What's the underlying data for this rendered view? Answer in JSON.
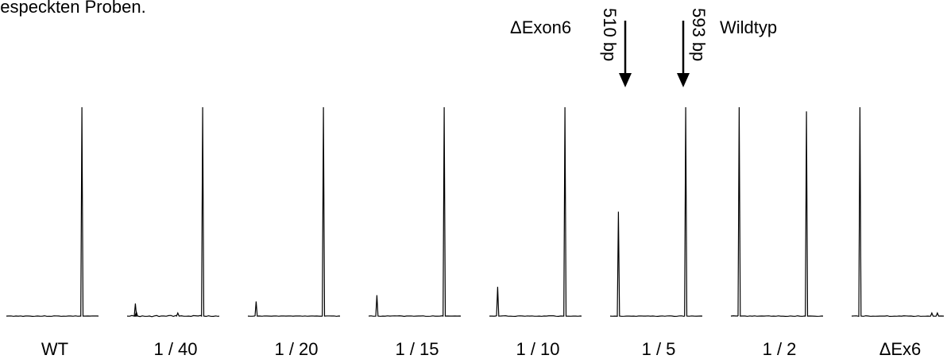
{
  "header_text": "gespeckten Proben.",
  "annotations": {
    "exon_label": "ΔExon6",
    "wildtype_label": "Wildtyp",
    "size_510": "510 bp",
    "size_593": "593 bp"
  },
  "chart_data": {
    "type": "line",
    "title": "",
    "xlabel": "",
    "ylabel": "",
    "description": "Electropherogram panels showing the ΔExon6 (510 bp) and Wildtyp (593 bp) peaks for each dilution",
    "panels": [
      {
        "label": "WT",
        "peak_510": 0,
        "peak_593": 1.0,
        "extra": [],
        "noise": [
          0.003,
          0.002
        ]
      },
      {
        "label": "1 / 40",
        "peak_510": 0.06,
        "peak_593": 1.0,
        "extra": [
          [
            0.1,
            0.02
          ],
          [
            0.55,
            0.015
          ]
        ],
        "noise": [
          0.006,
          0.004
        ]
      },
      {
        "label": "1 / 20",
        "peak_510": 0.07,
        "peak_593": 1.0,
        "extra": [],
        "noise": [
          0.002,
          0.002
        ]
      },
      {
        "label": "1 / 15",
        "peak_510": 0.1,
        "peak_593": 1.0,
        "extra": [],
        "noise": [
          0.003,
          0.002
        ]
      },
      {
        "label": "1 / 10",
        "peak_510": 0.14,
        "peak_593": 1.0,
        "extra": [],
        "noise": [
          0.003,
          0.002
        ]
      },
      {
        "label": "1 / 5",
        "peak_510": 0.5,
        "peak_593": 1.0,
        "extra": [],
        "noise": [
          0.003,
          0.002
        ]
      },
      {
        "label": "1 / 2",
        "peak_510": 1.0,
        "peak_593": 0.98,
        "extra": [],
        "noise": [
          0.003,
          0.002
        ]
      },
      {
        "label": "ΔEx6",
        "peak_510": 1.0,
        "peak_593": 0,
        "extra": [
          [
            0.87,
            0.015
          ],
          [
            0.93,
            0.015
          ]
        ],
        "noise": [
          0.003,
          0.002
        ]
      }
    ]
  }
}
